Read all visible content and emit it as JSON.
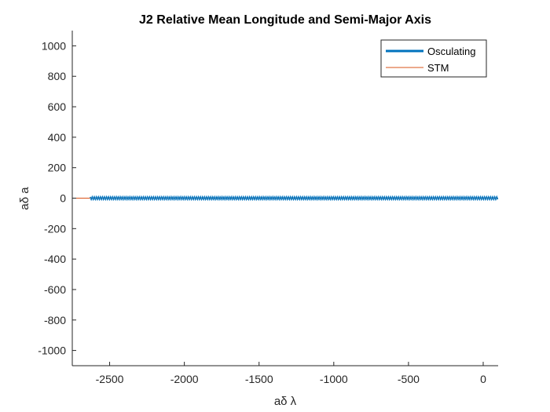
{
  "chart_data": {
    "type": "line",
    "title": "J2 Relative Mean Longitude and Semi-Major Axis",
    "xlabel": "aδ λ",
    "ylabel": "aδ a",
    "xlim": [
      -2750,
      100
    ],
    "ylim": [
      -1100,
      1100
    ],
    "xticks": [
      -2500,
      -2000,
      -1500,
      -1000,
      -500,
      0
    ],
    "yticks": [
      -1000,
      -800,
      -600,
      -400,
      -200,
      0,
      200,
      400,
      600,
      800,
      1000
    ],
    "grid": false,
    "legend_location": "top-right",
    "series": [
      {
        "name": "Osculating",
        "color": "#0072BD",
        "line_style": "thick",
        "x": [
          -2630,
          100
        ],
        "y": [
          0,
          0
        ],
        "y_oscillation_amplitude": 2
      },
      {
        "name": "STM",
        "color": "#D95319",
        "line_style": "thin",
        "x": [
          -2750,
          100
        ],
        "y": [
          0,
          0
        ]
      }
    ]
  }
}
